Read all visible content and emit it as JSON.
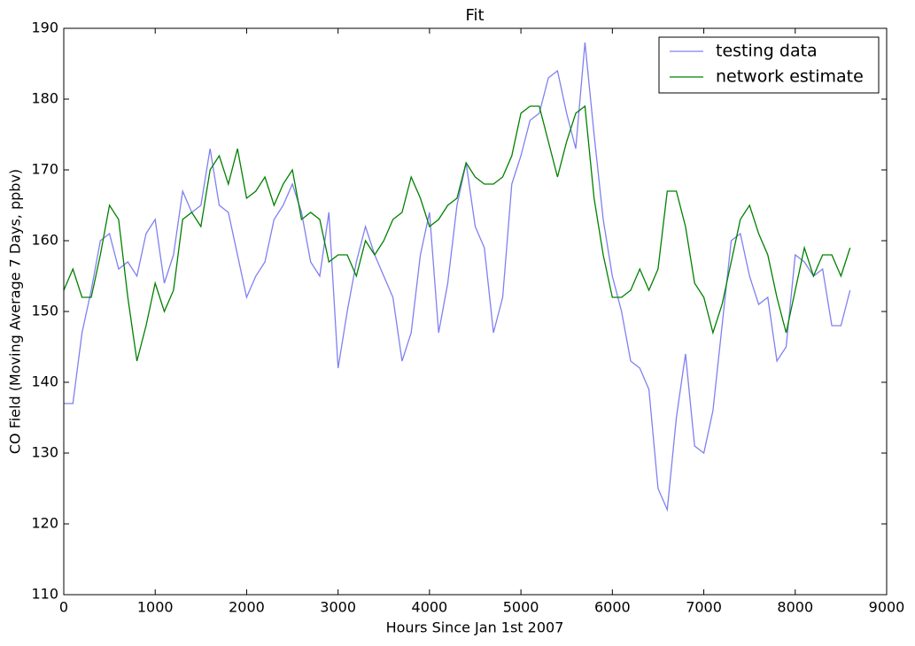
{
  "chart_data": {
    "type": "line",
    "title": "Fit",
    "x_label": "Hours Since Jan 1st 2007",
    "y_label": "CO Field (Moving Average 7 Days, ppbv)",
    "x": [
      0,
      100,
      200,
      300,
      400,
      500,
      600,
      700,
      800,
      900,
      1000,
      1100,
      1200,
      1300,
      1400,
      1500,
      1600,
      1700,
      1800,
      1900,
      2000,
      2100,
      2200,
      2300,
      2400,
      2500,
      2600,
      2700,
      2800,
      2900,
      3000,
      3100,
      3200,
      3300,
      3400,
      3500,
      3600,
      3700,
      3800,
      3900,
      4000,
      4100,
      4200,
      4300,
      4400,
      4500,
      4600,
      4700,
      4800,
      4900,
      5000,
      5100,
      5200,
      5300,
      5400,
      5500,
      5600,
      5700,
      5800,
      5900,
      6000,
      6100,
      6200,
      6300,
      6400,
      6500,
      6600,
      6700,
      6800,
      6900,
      7000,
      7100,
      7200,
      7300,
      7400,
      7500,
      7600,
      7700,
      7800,
      7900,
      8000,
      8100,
      8200,
      8300,
      8400,
      8500,
      8600
    ],
    "series": [
      {
        "name": "testing data",
        "color": "#8080f0",
        "values": [
          137,
          137,
          147,
          153,
          160,
          161,
          156,
          157,
          155,
          161,
          163,
          154,
          158,
          167,
          164,
          165,
          173,
          165,
          164,
          158,
          152,
          155,
          157,
          163,
          165,
          168,
          164,
          157,
          155,
          164,
          142,
          150,
          157,
          162,
          158,
          155,
          152,
          143,
          147,
          158,
          164,
          147,
          154,
          165,
          171,
          162,
          159,
          147,
          152,
          168,
          172,
          177,
          178,
          183,
          184,
          178,
          173,
          188,
          175,
          163,
          155,
          150,
          143,
          142,
          139,
          125,
          122,
          135,
          144,
          131,
          130,
          136,
          148,
          160,
          161,
          155,
          151,
          152,
          143,
          145,
          158,
          157,
          155,
          156,
          148,
          148,
          153
        ]
      },
      {
        "name": "network estimate",
        "color": "#008000",
        "values": [
          153,
          156,
          152,
          152,
          158,
          165,
          163,
          152,
          143,
          148,
          154,
          150,
          153,
          163,
          164,
          162,
          170,
          172,
          168,
          173,
          166,
          167,
          169,
          165,
          168,
          170,
          163,
          164,
          163,
          157,
          158,
          158,
          155,
          160,
          158,
          160,
          163,
          164,
          169,
          166,
          162,
          163,
          165,
          166,
          171,
          169,
          168,
          168,
          169,
          172,
          178,
          179,
          179,
          174,
          169,
          174,
          178,
          179,
          166,
          158,
          152,
          152,
          153,
          156,
          153,
          156,
          167,
          167,
          162,
          154,
          152,
          147,
          151,
          157,
          163,
          165,
          161,
          158,
          152,
          147,
          153,
          159,
          155,
          158,
          158,
          155,
          159
        ]
      }
    ],
    "xlim": [
      0,
      9000
    ],
    "xticks": [
      0,
      1000,
      2000,
      3000,
      4000,
      5000,
      6000,
      7000,
      8000,
      9000
    ],
    "ylim": [
      110,
      190
    ],
    "yticks": [
      110,
      120,
      130,
      140,
      150,
      160,
      170,
      180,
      190
    ],
    "legend": "upper right"
  }
}
